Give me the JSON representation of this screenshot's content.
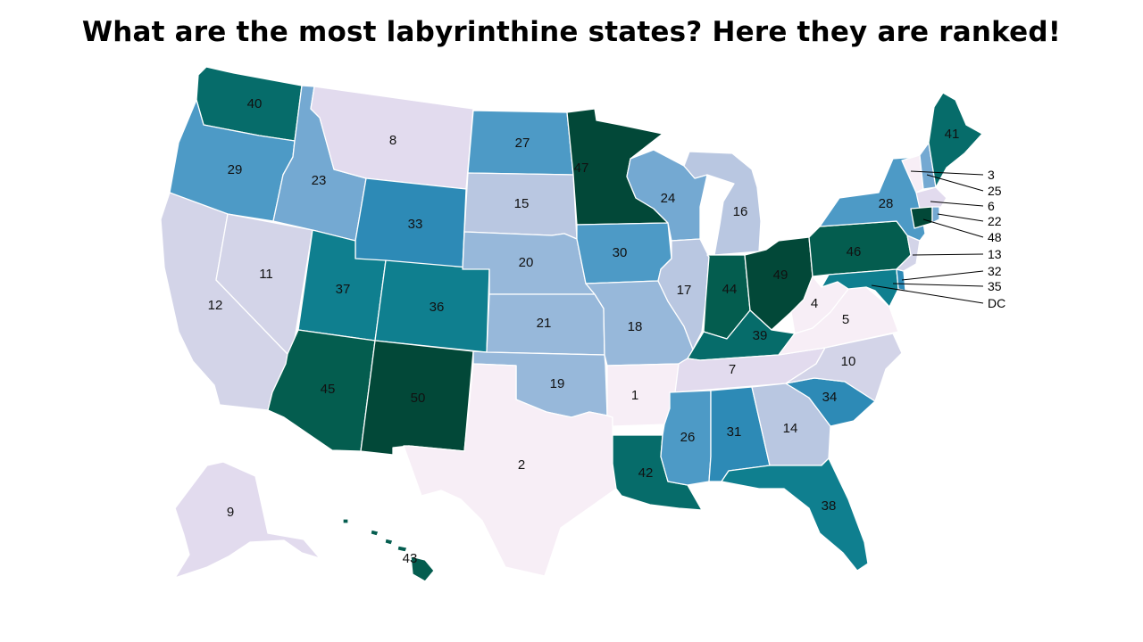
{
  "title": "What are the most labyrinthine states? Here they are ranked!",
  "color_scale": [
    "#f7eef6",
    "#e2dbee",
    "#d3d4e8",
    "#b9c7e1",
    "#97b8da",
    "#74a9d2",
    "#4d9ac6",
    "#2d8ab6",
    "#0f7f8f",
    "#066c6a",
    "#045d4f",
    "#024838"
  ],
  "states": {
    "AR": {
      "name": "Arkansas",
      "rank": 1
    },
    "TX": {
      "name": "Texas",
      "rank": 2
    },
    "VT": {
      "name": "Vermont",
      "rank": 3
    },
    "WV": {
      "name": "West Virginia",
      "rank": 4
    },
    "VA": {
      "name": "Virginia",
      "rank": 5
    },
    "MA": {
      "name": "Massachusetts",
      "rank": 6
    },
    "TN": {
      "name": "Tennessee",
      "rank": 7
    },
    "MT": {
      "name": "Montana",
      "rank": 8
    },
    "AK": {
      "name": "Alaska",
      "rank": 9
    },
    "NC": {
      "name": "North Carolina",
      "rank": 10
    },
    "NV": {
      "name": "Nevada",
      "rank": 11
    },
    "CA": {
      "name": "California",
      "rank": 12
    },
    "NJ": {
      "name": "New Jersey",
      "rank": 13
    },
    "GA": {
      "name": "Georgia",
      "rank": 14
    },
    "SD": {
      "name": "South Dakota",
      "rank": 15
    },
    "MI": {
      "name": "Michigan",
      "rank": 16
    },
    "IL": {
      "name": "Illinois",
      "rank": 17
    },
    "MO": {
      "name": "Missouri",
      "rank": 18
    },
    "OK": {
      "name": "Oklahoma",
      "rank": 19
    },
    "NE": {
      "name": "Nebraska",
      "rank": 20
    },
    "KS": {
      "name": "Kansas",
      "rank": 21
    },
    "RI": {
      "name": "Rhode Island",
      "rank": 22
    },
    "ID": {
      "name": "Idaho",
      "rank": 23
    },
    "WI": {
      "name": "Wisconsin",
      "rank": 24
    },
    "NH": {
      "name": "New Hampshire",
      "rank": 25
    },
    "MS": {
      "name": "Mississippi",
      "rank": 26
    },
    "ND": {
      "name": "North Dakota",
      "rank": 27
    },
    "NY": {
      "name": "New York",
      "rank": 28
    },
    "OR": {
      "name": "Oregon",
      "rank": 29
    },
    "IA": {
      "name": "Iowa",
      "rank": 30
    },
    "AL": {
      "name": "Alabama",
      "rank": 31
    },
    "DE": {
      "name": "Delaware",
      "rank": 32
    },
    "WY": {
      "name": "Wyoming",
      "rank": 33
    },
    "SC": {
      "name": "South Carolina",
      "rank": 34
    },
    "MD": {
      "name": "Maryland",
      "rank": 35
    },
    "CO": {
      "name": "Colorado",
      "rank": 36
    },
    "UT": {
      "name": "Utah",
      "rank": 37
    },
    "FL": {
      "name": "Florida",
      "rank": 38
    },
    "KY": {
      "name": "Kentucky",
      "rank": 39
    },
    "WA": {
      "name": "Washington",
      "rank": 40
    },
    "ME": {
      "name": "Maine",
      "rank": 41
    },
    "LA": {
      "name": "Louisiana",
      "rank": 42
    },
    "HI": {
      "name": "Hawaii",
      "rank": 43
    },
    "IN": {
      "name": "Indiana",
      "rank": 44
    },
    "AZ": {
      "name": "Arizona",
      "rank": 45
    },
    "PA": {
      "name": "Pennsylvania",
      "rank": 46
    },
    "MN": {
      "name": "Minnesota",
      "rank": 47
    },
    "CT": {
      "name": "Connecticut",
      "rank": 48
    },
    "OH": {
      "name": "Ohio",
      "rank": 49
    },
    "NM": {
      "name": "New Mexico",
      "rank": 50
    }
  },
  "callouts": [
    {
      "state": "VT",
      "label": "3"
    },
    {
      "state": "NH",
      "label": "25"
    },
    {
      "state": "MA",
      "label": "6"
    },
    {
      "state": "RI",
      "label": "22"
    },
    {
      "state": "CT",
      "label": "48"
    },
    {
      "state": "NJ",
      "label": "13"
    },
    {
      "state": "DE",
      "label": "32"
    },
    {
      "state": "MD",
      "label": "35"
    },
    {
      "state": "DC",
      "label": "DC"
    }
  ]
}
